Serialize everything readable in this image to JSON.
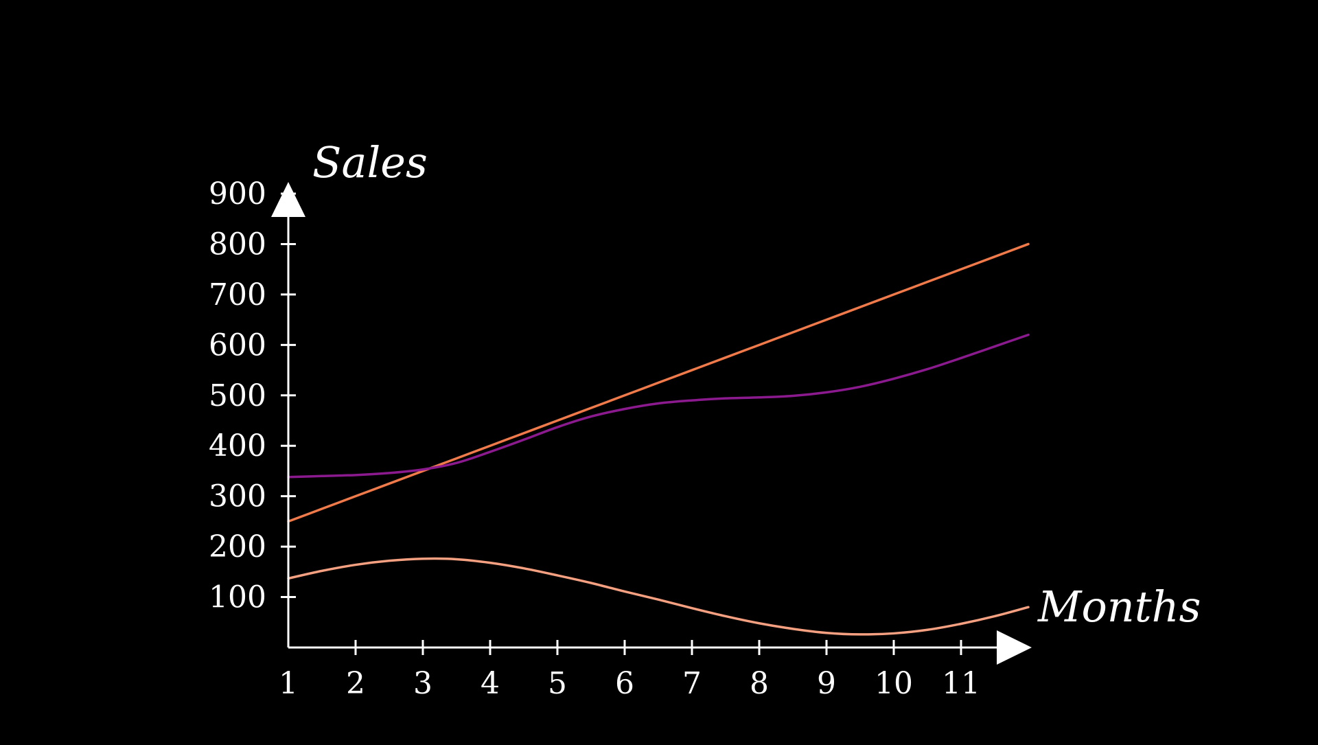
{
  "colors": {
    "background": "#000000",
    "axis": "#ffffff"
  },
  "chart_data": {
    "type": "line",
    "title": "",
    "xlabel": "Months",
    "ylabel": "Sales",
    "xlim": [
      1,
      12
    ],
    "ylim": [
      0,
      900
    ],
    "x_ticks": [
      1,
      2,
      3,
      4,
      5,
      6,
      7,
      8,
      9,
      10,
      11
    ],
    "y_ticks": [
      100,
      200,
      300,
      400,
      500,
      600,
      700,
      800,
      900
    ],
    "grid": false,
    "legend": "none",
    "x": [
      1,
      1.5,
      2,
      2.5,
      3,
      3.5,
      4,
      4.5,
      5,
      5.5,
      6,
      6.5,
      7,
      7.5,
      8,
      8.5,
      9,
      9.5,
      10,
      10.5,
      11,
      11.5,
      12
    ],
    "series": [
      {
        "color": "#f07a4a",
        "values": [
          250,
          275,
          300,
          325,
          350,
          375,
          400,
          425,
          450,
          475,
          500,
          525,
          550,
          575,
          600,
          625,
          650,
          675,
          700,
          725,
          750,
          775,
          800
        ]
      },
      {
        "color": "#8b1a8f",
        "values": [
          338,
          340,
          342,
          346,
          353,
          366,
          388,
          412,
          437,
          458,
          473,
          484,
          490,
          494,
          496,
          499,
          506,
          517,
          533,
          552,
          574,
          597,
          620
        ]
      },
      {
        "color": "#f5a080",
        "values": [
          137,
          152,
          164,
          172,
          176,
          175,
          168,
          157,
          143,
          128,
          111,
          95,
          78,
          62,
          48,
          37,
          29,
          26,
          28,
          35,
          47,
          62,
          80
        ]
      }
    ]
  }
}
